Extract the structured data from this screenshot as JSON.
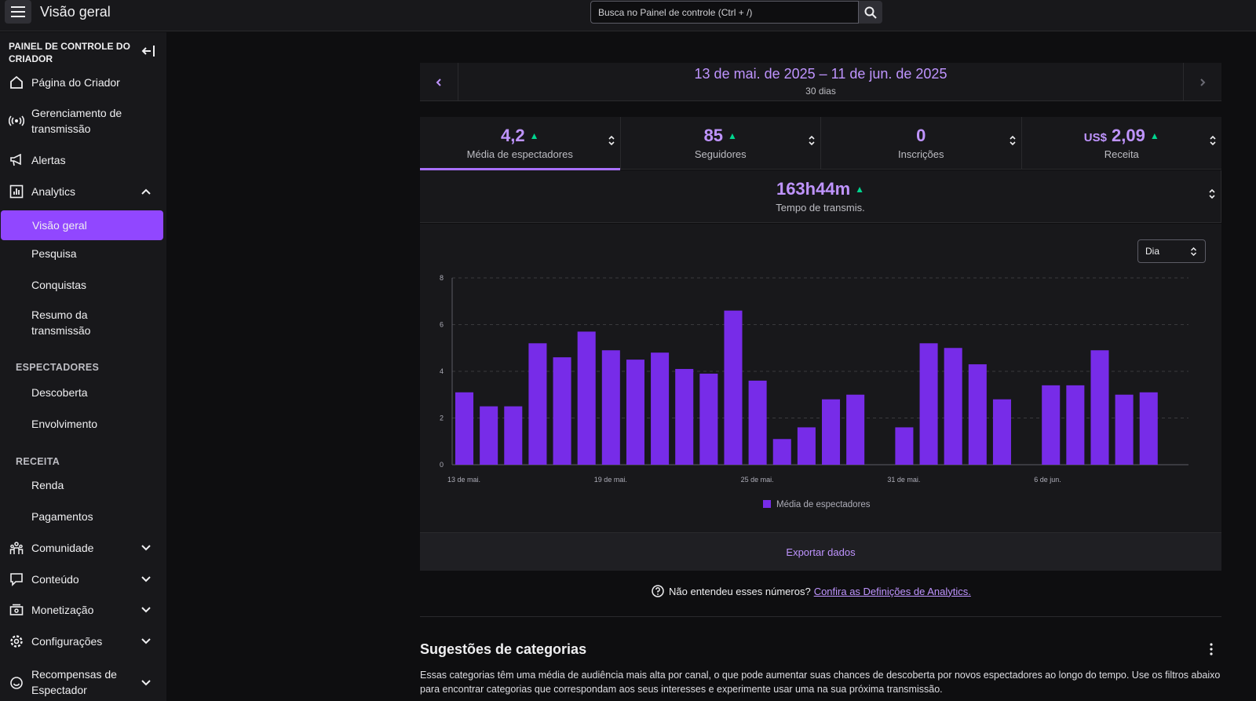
{
  "header": {
    "title": "Visão geral",
    "search_placeholder": "Busca no Painel de controle (Ctrl + /)"
  },
  "sidebar": {
    "title": "PAINEL DE CONTROLE DO CRIADOR",
    "items": [
      {
        "label": "Página do Criador",
        "icon": "home-icon"
      },
      {
        "label": "Gerenciamento de transmissão",
        "icon": "broadcast-icon"
      },
      {
        "label": "Alertas",
        "icon": "megaphone-icon"
      },
      {
        "label": "Analytics",
        "icon": "analytics-icon",
        "expanded": true
      },
      {
        "label": "Visão geral",
        "active": true
      },
      {
        "label": "Pesquisa"
      },
      {
        "label": "Conquistas"
      },
      {
        "label": "Resumo da transmissão"
      },
      {
        "label": "Descoberta"
      },
      {
        "label": "Envolvimento"
      },
      {
        "label": "Renda"
      },
      {
        "label": "Pagamentos"
      },
      {
        "label": "Comunidade",
        "icon": "community-icon"
      },
      {
        "label": "Conteúdo",
        "icon": "content-icon"
      },
      {
        "label": "Monetização",
        "icon": "monetization-icon"
      },
      {
        "label": "Configurações",
        "icon": "gear-icon"
      },
      {
        "label": "Recompensas de Espectador",
        "icon": "rewards-icon"
      }
    ],
    "sections": {
      "viewers": "ESPECTADORES",
      "revenue": "RECEITA"
    }
  },
  "date_range": {
    "label": "13 de mai. de 2025 – 11 de jun. de 2025",
    "days": "30 dias"
  },
  "metrics": [
    {
      "value": "4,2",
      "label": "Média de espectadores",
      "trend": "up",
      "selected": true
    },
    {
      "value": "85",
      "label": "Seguidores",
      "trend": "up"
    },
    {
      "value": "0",
      "label": "Inscrições"
    },
    {
      "currency": "US$",
      "value": "2,09",
      "label": "Receita",
      "trend": "up"
    }
  ],
  "stream_time": {
    "value": "163h44m",
    "label": "Tempo de transmis.",
    "trend": "up"
  },
  "granularity_select": "Dia",
  "colors": {
    "accent": "#9147ff",
    "bar": "#772ce8",
    "link": "#bf94ff",
    "trend_up": "#00d68f"
  },
  "chart_data": {
    "type": "bar",
    "title": "",
    "xlabel": "",
    "ylabel": "",
    "ylim": [
      0,
      8
    ],
    "yticks": [
      0,
      2,
      4,
      6,
      8
    ],
    "categories": [
      "13 de mai.",
      "14 de mai.",
      "15 de mai.",
      "16 de mai.",
      "17 de mai.",
      "18 de mai.",
      "19 de mai.",
      "20 de mai.",
      "21 de mai.",
      "22 de mai.",
      "23 de mai.",
      "24 de mai.",
      "25 de mai.",
      "26 de mai.",
      "27 de mai.",
      "28 de mai.",
      "29 de mai.",
      "30 de mai.",
      "31 de mai.",
      "1 de jun.",
      "2 de jun.",
      "3 de jun.",
      "4 de jun.",
      "5 de jun.",
      "6 de jun.",
      "7 de jun.",
      "8 de jun.",
      "9 de jun.",
      "10 de jun.",
      "11 de jun."
    ],
    "xtick_labels": [
      "13 de mai.",
      "19 de mai.",
      "25 de mai.",
      "31 de mai.",
      "6 de jun."
    ],
    "xtick_indices": [
      0,
      6,
      12,
      18,
      24
    ],
    "series": [
      {
        "name": "Média de espectadores",
        "values": [
          3.1,
          2.5,
          2.5,
          5.2,
          4.6,
          5.7,
          4.9,
          4.5,
          4.8,
          4.1,
          3.9,
          6.6,
          3.6,
          1.1,
          1.6,
          2.8,
          3.0,
          0,
          1.6,
          5.2,
          5.0,
          4.3,
          2.8,
          0,
          3.4,
          3.4,
          4.9,
          3.0,
          3.1,
          0
        ]
      }
    ],
    "legend": "bottom",
    "grid": true
  },
  "export_label": "Exportar dados",
  "help": {
    "question": "Não entendeu esses números?",
    "link": "Confira as Definições de Analytics."
  },
  "suggestions": {
    "title": "Sugestões de categorias",
    "description": "Essas categorias têm uma média de audiência mais alta por canal, o que pode aumentar suas chances de descoberta por novos espectadores ao longo do tempo. Use os filtros abaixo para encontrar categorias que correspondam aos seus interesses e experimente usar uma na sua próxima transmissão."
  }
}
